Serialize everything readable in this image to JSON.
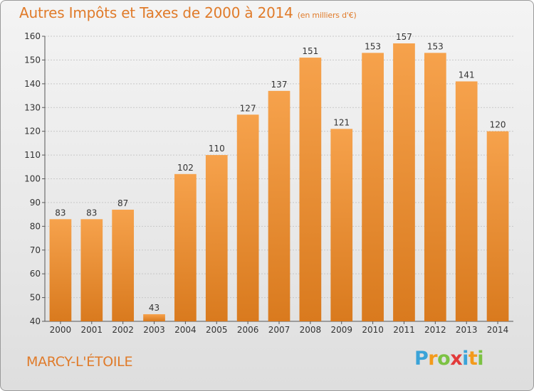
{
  "header": {
    "title": "Autres Impôts et Taxes de 2000 à 2014",
    "subtitle": "(en milliers d'€)"
  },
  "footer": {
    "city": "MARCY-L'ÉTOILE",
    "logo_letters": [
      "P",
      "r",
      "o",
      "x",
      "i",
      "t",
      "i"
    ],
    "logo_colors": [
      "#3aa3d8",
      "#f39a1b",
      "#7cc243",
      "#e23a3a",
      "#3aa3d8",
      "#f39a1b",
      "#7cc243"
    ]
  },
  "colors": {
    "bar_light": "#f6a24c",
    "bar_dark": "#d97a1e",
    "accent": "#e07b2a",
    "grid": "#c8c8c8"
  },
  "chart_data": {
    "type": "bar",
    "categories": [
      "2000",
      "2001",
      "2002",
      "2003",
      "2004",
      "2005",
      "2006",
      "2007",
      "2008",
      "2009",
      "2010",
      "2011",
      "2012",
      "2013",
      "2014"
    ],
    "values": [
      83,
      83,
      87,
      43,
      102,
      110,
      127,
      137,
      151,
      121,
      153,
      157,
      153,
      141,
      120
    ],
    "ylim": [
      40,
      160
    ],
    "yticks": [
      40,
      50,
      60,
      70,
      80,
      90,
      100,
      110,
      120,
      130,
      140,
      150,
      160
    ],
    "grid": true,
    "data_labels": true
  }
}
